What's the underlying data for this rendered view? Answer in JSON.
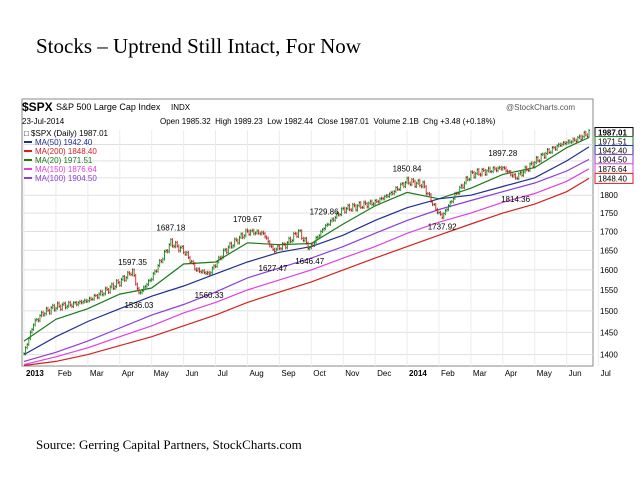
{
  "slide": {
    "title": "Stocks – Uptrend Still Intact, For Now",
    "source": "Source: Gerring Capital Partners, StockCharts.com"
  },
  "chart_header": {
    "symbol": "$SPX",
    "name": "S&P 500 Large Cap Index",
    "exchange": "INDX",
    "date": "23-Jul-2014",
    "brand": "@StockCharts.com",
    "quote": "Open 1985.32  High 1989.23  Low 1982.44  Close 1987.01  Volume 2.1B  Chg +3.48 (+0.18%)"
  },
  "legend": [
    {
      "label": "$SPX (Daily) 1987.01",
      "color": "#000000"
    },
    {
      "label": "MA(50) 1942.40",
      "color": "#1f2f8f"
    },
    {
      "label": "MA(200) 1848.40",
      "color": "#d62020"
    },
    {
      "label": "MA(20) 1971.51",
      "color": "#1a7a1a"
    },
    {
      "label": "MA(150) 1876.64",
      "color": "#e040e0"
    },
    {
      "label": "MA(100) 1904.50",
      "color": "#8a3fd6"
    }
  ],
  "chart_data": {
    "type": "line",
    "title": "$SPX S&P 500 Large Cap Index INDX",
    "y_scale": "log",
    "ylim": [
      1375,
      1995
    ],
    "y_ticks": [
      1400,
      1450,
      1500,
      1550,
      1600,
      1650,
      1700,
      1750,
      1800,
      1850,
      1900,
      1950
    ],
    "x_ticks": [
      "2013",
      "Feb",
      "Mar",
      "Apr",
      "May",
      "Jun",
      "Jul",
      "Aug",
      "Sep",
      "Oct",
      "Nov",
      "Dec",
      "2014",
      "Feb",
      "Mar",
      "Apr",
      "May",
      "Jun",
      "Jul"
    ],
    "grid": true,
    "colors": {
      "price": "#000000",
      "ma20": "#1a7a1a",
      "ma50": "#1f2f8f",
      "ma100": "#8a3fd6",
      "ma150": "#e040e0",
      "ma200": "#d62020",
      "up": "#1a8a1a",
      "down": "#d62020"
    },
    "series": [
      {
        "name": "$SPX (Daily)",
        "x": [
          0,
          0.3,
          0.6,
          1.0,
          1.5,
          2.0,
          2.5,
          3.0,
          3.4,
          3.6,
          4.0,
          4.6,
          5.0,
          5.4,
          5.8,
          6.3,
          7.0,
          7.5,
          7.8,
          8.2,
          8.6,
          8.95,
          9.4,
          10.0,
          10.5,
          11.0,
          11.5,
          12.0,
          12.5,
          12.9,
          13.1,
          13.5,
          14.0,
          14.5,
          15.0,
          15.4,
          15.8,
          16.3,
          16.8,
          17.3,
          17.7
        ],
        "values": [
          1402,
          1470,
          1495,
          1510,
          1515,
          1525,
          1545,
          1570,
          1597,
          1540,
          1580,
          1670,
          1650,
          1600,
          1590,
          1650,
          1700,
          1695,
          1650,
          1665,
          1700,
          1655,
          1710,
          1760,
          1770,
          1780,
          1805,
          1840,
          1830,
          1760,
          1740,
          1800,
          1860,
          1870,
          1880,
          1850,
          1880,
          1920,
          1950,
          1965,
          1987
        ]
      },
      {
        "name": "MA(20)",
        "x": [
          0,
          1,
          2,
          3,
          4,
          5,
          6,
          7,
          8,
          9,
          10,
          11,
          12,
          13,
          14,
          15,
          16,
          17,
          17.7
        ],
        "values": [
          1430,
          1480,
          1505,
          1540,
          1555,
          1615,
          1620,
          1670,
          1665,
          1668,
          1720,
          1770,
          1808,
          1790,
          1820,
          1860,
          1880,
          1940,
          1971.51
        ]
      },
      {
        "name": "MA(50)",
        "x": [
          0,
          1,
          2,
          3,
          4,
          5,
          6,
          7,
          8,
          9,
          10,
          11,
          12,
          13,
          14,
          15,
          16,
          17,
          17.7
        ],
        "values": [
          1400,
          1440,
          1475,
          1505,
          1535,
          1560,
          1590,
          1620,
          1645,
          1660,
          1690,
          1730,
          1765,
          1790,
          1800,
          1825,
          1850,
          1900,
          1942.4
        ]
      },
      {
        "name": "MA(100)",
        "x": [
          0,
          1,
          2,
          3,
          4,
          5,
          6,
          7,
          8,
          9,
          10,
          11,
          12,
          13,
          14,
          15,
          16,
          17,
          17.7
        ],
        "values": [
          1385,
          1405,
          1430,
          1460,
          1490,
          1515,
          1545,
          1580,
          1605,
          1630,
          1660,
          1695,
          1730,
          1760,
          1785,
          1810,
          1835,
          1870,
          1904.5
        ]
      },
      {
        "name": "MA(150)",
        "x": [
          0,
          1,
          2,
          3,
          4,
          5,
          6,
          7,
          8,
          9,
          10,
          11,
          12,
          13,
          14,
          15,
          16,
          17,
          17.7
        ],
        "values": [
          1378,
          1395,
          1415,
          1440,
          1465,
          1495,
          1520,
          1550,
          1575,
          1600,
          1630,
          1660,
          1695,
          1725,
          1750,
          1780,
          1805,
          1840,
          1876.64
        ]
      },
      {
        "name": "MA(200)",
        "x": [
          0,
          1,
          2,
          3,
          4,
          5,
          6,
          7,
          8,
          9,
          10,
          11,
          12,
          13,
          14,
          15,
          16,
          17,
          17.7
        ],
        "values": [
          1376,
          1385,
          1400,
          1420,
          1440,
          1465,
          1490,
          1520,
          1545,
          1570,
          1600,
          1630,
          1660,
          1690,
          1720,
          1750,
          1775,
          1810,
          1848.4
        ]
      }
    ],
    "annotations": [
      {
        "text": "1597.35",
        "x": 3.4,
        "y": 1597.35,
        "pos": "above"
      },
      {
        "text": "1536.03",
        "x": 3.6,
        "y": 1536.03,
        "pos": "below"
      },
      {
        "text": "1687.18",
        "x": 4.6,
        "y": 1687.18,
        "pos": "above"
      },
      {
        "text": "1560.33",
        "x": 5.8,
        "y": 1560.33,
        "pos": "below"
      },
      {
        "text": "1709.67",
        "x": 7.0,
        "y": 1709.67,
        "pos": "above"
      },
      {
        "text": "1627.47",
        "x": 7.8,
        "y": 1627.47,
        "pos": "below"
      },
      {
        "text": "1729.86",
        "x": 9.4,
        "y": 1729.86,
        "pos": "above"
      },
      {
        "text": "1646.47",
        "x": 8.95,
        "y": 1646.47,
        "pos": "below"
      },
      {
        "text": "1850.84",
        "x": 12.0,
        "y": 1850.84,
        "pos": "above"
      },
      {
        "text": "1737.92",
        "x": 13.1,
        "y": 1737.92,
        "pos": "below"
      },
      {
        "text": "1897.28",
        "x": 15.0,
        "y": 1897.28,
        "pos": "above"
      },
      {
        "text": "1814.36",
        "x": 15.4,
        "y": 1814.36,
        "pos": "below"
      }
    ],
    "right_tags": [
      {
        "text": "1987.01",
        "value": 1987.01,
        "color": "#000000",
        "bold": true
      },
      {
        "text": "1971.51",
        "value": 1971.51,
        "color": "#1a7a1a"
      },
      {
        "text": "1942.40",
        "value": 1942.4,
        "color": "#1f2f8f"
      },
      {
        "text": "1904.50",
        "value": 1904.5,
        "color": "#8a3fd6"
      },
      {
        "text": "1876.64",
        "value": 1876.64,
        "color": "#e040e0"
      },
      {
        "text": "1848.40",
        "value": 1848.4,
        "color": "#d62020"
      }
    ]
  }
}
